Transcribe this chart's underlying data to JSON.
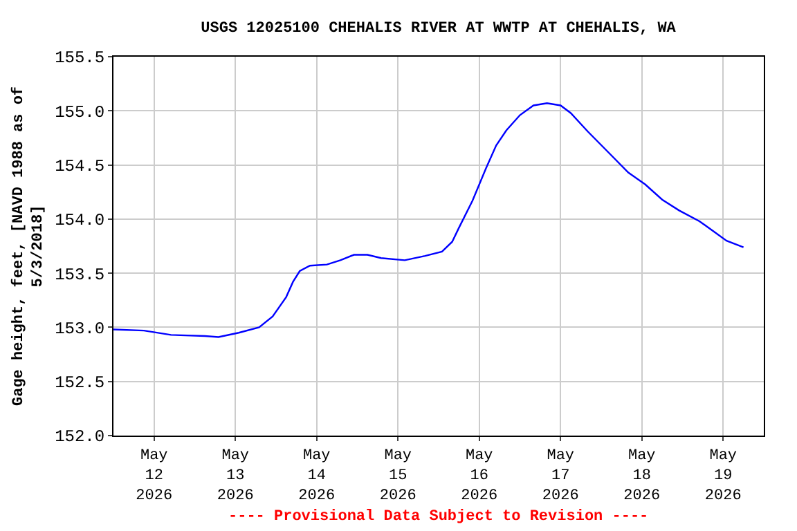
{
  "chart_data": {
    "type": "line",
    "title": "USGS 12025100 CHEHALIS RIVER AT WWTP AT CHEHALIS, WA",
    "ylabel": "Gage height, feet, [NAVD 1988 as of\n5/3/2018]",
    "annotations": [
      "---- Provisional Data Subject to Revision ----"
    ],
    "x": [
      "2026-05-11T12:00",
      "2026-05-11T21:00",
      "2026-05-12T05:00",
      "2026-05-12T15:00",
      "2026-05-12T19:00",
      "2026-05-13T01:00",
      "2026-05-13T07:00",
      "2026-05-13T11:00",
      "2026-05-13T15:00",
      "2026-05-13T17:00",
      "2026-05-13T19:00",
      "2026-05-13T22:00",
      "2026-05-14T03:00",
      "2026-05-14T07:00",
      "2026-05-14T11:00",
      "2026-05-14T15:00",
      "2026-05-14T19:00",
      "2026-05-15T02:00",
      "2026-05-15T08:00",
      "2026-05-15T13:00",
      "2026-05-15T16:00",
      "2026-05-15T18:00",
      "2026-05-15T22:00",
      "2026-05-16T02:00",
      "2026-05-16T05:00",
      "2026-05-16T08:00",
      "2026-05-16T12:00",
      "2026-05-16T16:00",
      "2026-05-16T20:00",
      "2026-05-17T00:00",
      "2026-05-17T03:00",
      "2026-05-17T08:00",
      "2026-05-17T14:00",
      "2026-05-17T20:00",
      "2026-05-18T01:00",
      "2026-05-18T06:00",
      "2026-05-18T11:00",
      "2026-05-18T17:00",
      "2026-05-18T21:00",
      "2026-05-19T01:00",
      "2026-05-19T06:00"
    ],
    "series": [
      {
        "color": "#0000ff",
        "values": [
          152.98,
          152.97,
          152.93,
          152.92,
          152.91,
          152.95,
          153.0,
          153.1,
          153.28,
          153.42,
          153.52,
          153.57,
          153.58,
          153.62,
          153.67,
          153.67,
          153.64,
          153.62,
          153.66,
          153.7,
          153.79,
          153.92,
          154.17,
          154.47,
          154.68,
          154.82,
          154.96,
          155.05,
          155.07,
          155.05,
          154.98,
          154.81,
          154.62,
          154.43,
          154.32,
          154.18,
          154.08,
          153.98,
          153.89,
          153.8,
          153.74
        ]
      }
    ],
    "xlim": [
      "2026-05-11T12:00",
      "2026-05-19T12:00"
    ],
    "xticks": [
      {
        "value": "2026-05-12",
        "label": "May\n12\n2026"
      },
      {
        "value": "2026-05-13",
        "label": "May\n13\n2026"
      },
      {
        "value": "2026-05-14",
        "label": "May\n14\n2026"
      },
      {
        "value": "2026-05-15",
        "label": "May\n15\n2026"
      },
      {
        "value": "2026-05-16",
        "label": "May\n16\n2026"
      },
      {
        "value": "2026-05-17",
        "label": "May\n17\n2026"
      },
      {
        "value": "2026-05-18",
        "label": "May\n18\n2026"
      },
      {
        "value": "2026-05-19",
        "label": "May\n19\n2026"
      }
    ],
    "ylim": [
      152.0,
      155.5
    ],
    "yticks": [
      {
        "value": 152.0,
        "label": "152.0"
      },
      {
        "value": 152.5,
        "label": "152.5"
      },
      {
        "value": 153.0,
        "label": "153.0"
      },
      {
        "value": 153.5,
        "label": "153.5"
      },
      {
        "value": 154.0,
        "label": "154.0"
      },
      {
        "value": 154.5,
        "label": "154.5"
      },
      {
        "value": 155.0,
        "label": "155.0"
      },
      {
        "value": 155.5,
        "label": "155.5"
      }
    ],
    "grid": true,
    "legend": false,
    "marker": "none",
    "line_style": "solid"
  }
}
